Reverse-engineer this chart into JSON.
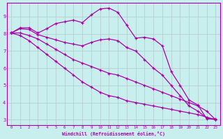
{
  "xlabel": "Windchill (Refroidissement éolien,°C)",
  "bg_color": "#c8eeee",
  "line_color": "#aa00aa",
  "grid_color": "#b0c8c8",
  "xlim": [
    -0.5,
    23.5
  ],
  "ylim": [
    2.7,
    9.8
  ],
  "yticks": [
    3,
    4,
    5,
    6,
    7,
    8,
    9
  ],
  "xticks": [
    0,
    1,
    2,
    3,
    4,
    5,
    6,
    7,
    8,
    9,
    10,
    11,
    12,
    13,
    14,
    15,
    16,
    17,
    18,
    19,
    20,
    21,
    22,
    23
  ],
  "lines": [
    {
      "x": [
        0,
        1,
        2,
        3,
        4,
        5,
        6,
        7,
        8,
        9,
        10,
        11,
        12,
        13,
        14,
        15,
        16,
        17,
        18,
        19,
        20,
        21,
        22,
        23
      ],
      "y": [
        8.05,
        8.35,
        8.35,
        8.05,
        8.3,
        8.6,
        8.7,
        8.8,
        8.65,
        9.1,
        9.45,
        9.5,
        9.25,
        8.5,
        7.75,
        7.8,
        7.7,
        7.3,
        5.8,
        5.0,
        4.15,
        3.85,
        3.05,
        3.05
      ]
    },
    {
      "x": [
        0,
        1,
        2,
        3,
        4,
        5,
        6,
        7,
        8,
        9,
        10,
        11,
        12,
        13,
        14,
        15,
        16,
        17,
        18,
        19,
        20,
        21,
        22,
        23
      ],
      "y": [
        8.05,
        8.3,
        8.25,
        7.95,
        7.8,
        7.65,
        7.5,
        7.4,
        7.3,
        7.5,
        7.65,
        7.7,
        7.6,
        7.2,
        7.0,
        6.5,
        6.0,
        5.6,
        5.0,
        4.4,
        3.8,
        3.5,
        3.1,
        3.0
      ]
    },
    {
      "x": [
        0,
        1,
        2,
        3,
        4,
        5,
        6,
        7,
        8,
        9,
        10,
        11,
        12,
        13,
        14,
        15,
        16,
        17,
        18,
        19,
        20,
        21,
        22,
        23
      ],
      "y": [
        8.05,
        8.05,
        7.9,
        7.7,
        7.4,
        7.1,
        6.8,
        6.5,
        6.3,
        6.1,
        5.9,
        5.7,
        5.6,
        5.4,
        5.2,
        5.0,
        4.8,
        4.6,
        4.4,
        4.2,
        4.0,
        3.8,
        3.5,
        3.0
      ]
    },
    {
      "x": [
        0,
        1,
        2,
        3,
        4,
        5,
        6,
        7,
        8,
        9,
        10,
        11,
        12,
        13,
        14,
        15,
        16,
        17,
        18,
        19,
        20,
        21,
        22,
        23
      ],
      "y": [
        8.05,
        7.9,
        7.6,
        7.2,
        6.8,
        6.4,
        6.0,
        5.6,
        5.2,
        4.9,
        4.6,
        4.4,
        4.3,
        4.1,
        4.0,
        3.9,
        3.8,
        3.7,
        3.6,
        3.5,
        3.4,
        3.3,
        3.15,
        3.0
      ]
    }
  ]
}
